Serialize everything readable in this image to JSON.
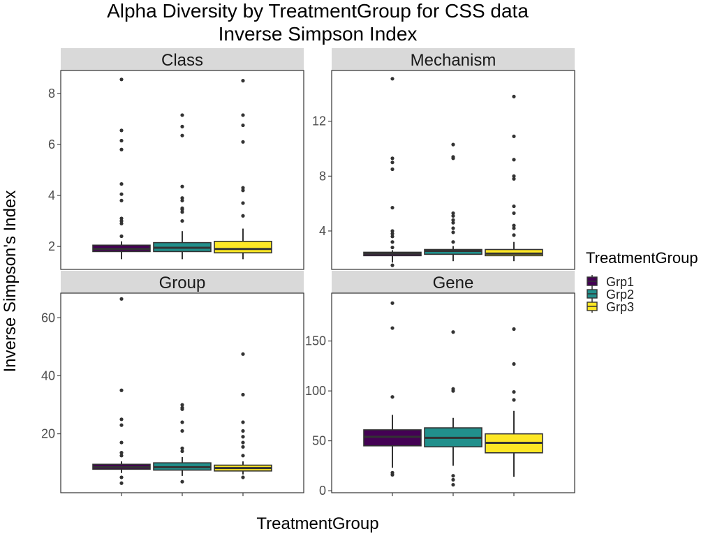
{
  "chart_data": {
    "type": "box",
    "title": "Alpha Diversity by TreatmentGroup for CSS data",
    "subtitle": "Inverse Simpson Index",
    "xlabel": "TreatmentGroup",
    "ylabel": "Inverse Simpson's Index",
    "grid": false,
    "legend": {
      "title": "TreatmentGroup",
      "placement": "right",
      "entries": [
        {
          "label": "Grp1",
          "color": "#440154"
        },
        {
          "label": "Grp2",
          "color": "#21908C"
        },
        {
          "label": "Grp3",
          "color": "#FDE725"
        }
      ]
    },
    "panels": [
      {
        "name": "Class",
        "ylim": [
          1.1,
          8.9
        ],
        "yticks": [
          2,
          4,
          6,
          8
        ],
        "series": [
          {
            "group": "Grp1",
            "lower_whisker": 1.5,
            "q1": 1.8,
            "median": 1.9,
            "q3": 2.05,
            "upper_whisker": 2.2,
            "outliers": [
              2.4,
              2.9,
              3.0,
              3.1,
              3.8,
              4.05,
              4.45,
              5.8,
              6.15,
              6.55,
              8.55
            ]
          },
          {
            "group": "Grp2",
            "lower_whisker": 1.5,
            "q1": 1.8,
            "median": 1.95,
            "q3": 2.15,
            "upper_whisker": 2.6,
            "outliers": [
              3.0,
              3.35,
              3.45,
              3.5,
              3.8,
              3.9,
              4.35,
              6.35,
              6.7,
              7.15
            ]
          },
          {
            "group": "Grp3",
            "lower_whisker": 1.5,
            "q1": 1.75,
            "median": 1.9,
            "q3": 2.2,
            "upper_whisker": 2.7,
            "outliers": [
              3.2,
              3.7,
              4.2,
              4.3,
              6.1,
              6.75,
              7.15,
              8.5
            ]
          }
        ]
      },
      {
        "name": "Mechanism",
        "ylim": [
          1.2,
          15.7
        ],
        "yticks": [
          4,
          8,
          12
        ],
        "series": [
          {
            "group": "Grp1",
            "lower_whisker": 1.7,
            "q1": 2.2,
            "median": 2.35,
            "q3": 2.45,
            "upper_whisker": 2.6,
            "outliers": [
              1.5,
              2.8,
              3.2,
              3.6,
              3.8,
              4.0,
              5.7,
              8.5,
              9.0,
              9.3,
              15.1
            ]
          },
          {
            "group": "Grp2",
            "lower_whisker": 1.8,
            "q1": 2.3,
            "median": 2.55,
            "q3": 2.65,
            "upper_whisker": 2.9,
            "outliers": [
              3.2,
              3.9,
              4.2,
              4.6,
              4.8,
              5.1,
              5.3,
              9.3,
              9.4,
              10.3
            ]
          },
          {
            "group": "Grp3",
            "lower_whisker": 1.8,
            "q1": 2.2,
            "median": 2.35,
            "q3": 2.65,
            "upper_whisker": 3.2,
            "outliers": [
              3.7,
              4.2,
              4.4,
              5.3,
              5.8,
              7.8,
              8.0,
              9.2,
              10.9,
              13.8
            ]
          }
        ]
      },
      {
        "name": "Group",
        "ylim": [
          -0.3,
          68.5
        ],
        "yticks": [
          20,
          40,
          60
        ],
        "series": [
          {
            "group": "Grp1",
            "lower_whisker": 6.5,
            "q1": 7.8,
            "median": 8.5,
            "q3": 9.5,
            "upper_whisker": 10.5,
            "outliers": [
              3.0,
              5.0,
              12.5,
              13.5,
              17.0,
              23.0,
              25.0,
              35.0,
              66.5
            ]
          },
          {
            "group": "Grp2",
            "lower_whisker": 5.5,
            "q1": 7.5,
            "median": 8.5,
            "q3": 10.0,
            "upper_whisker": 12.0,
            "outliers": [
              3.5,
              14.0,
              15.0,
              21.0,
              24.0,
              28.5,
              29.0,
              30.0
            ]
          },
          {
            "group": "Grp3",
            "lower_whisker": 6.0,
            "q1": 7.2,
            "median": 8.2,
            "q3": 9.2,
            "upper_whisker": 10.5,
            "outliers": [
              5.0,
              12.5,
              15.5,
              17.0,
              19.0,
              21.0,
              24.0,
              33.5,
              47.5
            ]
          }
        ]
      },
      {
        "name": "Gene",
        "ylim": [
          -2,
          198
        ],
        "yticks": [
          0,
          50,
          100,
          150
        ],
        "series": [
          {
            "group": "Grp1",
            "lower_whisker": 23,
            "q1": 45,
            "median": 54,
            "q3": 61,
            "upper_whisker": 76,
            "outliers": [
              16,
              18,
              94,
              163,
              188
            ]
          },
          {
            "group": "Grp2",
            "lower_whisker": 25,
            "q1": 44,
            "median": 53,
            "q3": 63,
            "upper_whisker": 73,
            "outliers": [
              6,
              11,
              15,
              100,
              102,
              159
            ]
          },
          {
            "group": "Grp3",
            "lower_whisker": 14,
            "q1": 38,
            "median": 48,
            "q3": 57,
            "upper_whisker": 80,
            "outliers": [
              91,
              99,
              127,
              162
            ]
          }
        ]
      }
    ]
  }
}
